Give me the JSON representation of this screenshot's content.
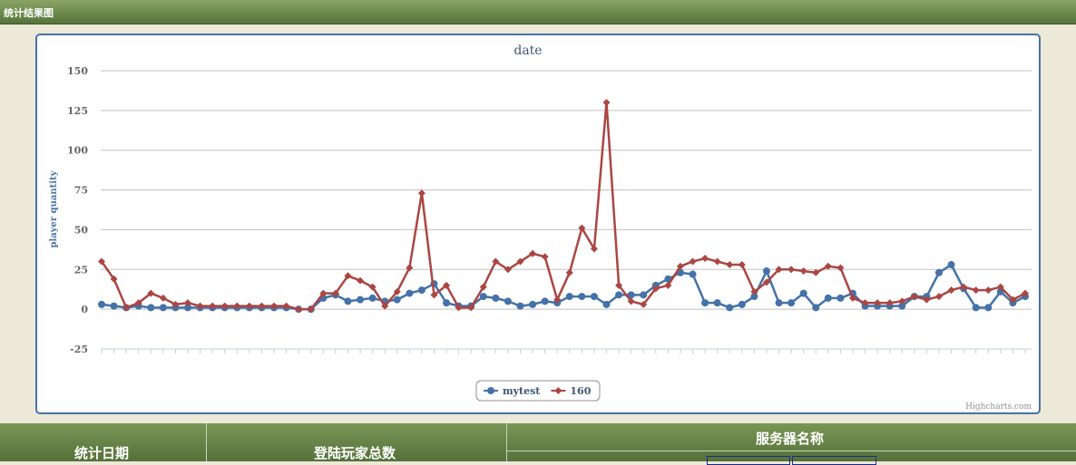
{
  "header": {
    "title": "统计结果图"
  },
  "chart_data": {
    "type": "line",
    "title": "date",
    "y_label": "player quantity",
    "credits": "Highcharts.com",
    "categories": [
      null,
      null,
      null,
      null,
      null,
      null,
      null,
      null,
      null,
      null,
      null,
      null,
      null,
      null,
      null,
      null,
      null,
      null,
      null,
      null,
      null,
      null,
      null,
      null,
      null,
      null,
      null,
      null,
      null,
      null,
      null,
      null,
      null,
      null,
      null,
      null,
      null,
      null,
      null,
      null,
      null,
      null,
      null,
      null,
      null,
      null,
      null,
      null,
      null,
      null,
      null,
      null,
      null,
      null,
      null,
      null,
      null,
      null,
      null,
      null,
      null,
      null,
      null,
      null,
      null,
      null,
      null,
      null,
      null,
      null,
      null,
      null,
      null,
      null,
      null,
      null
    ],
    "series": [
      {
        "name": "mytest",
        "color": "#4572a7",
        "marker": "circle",
        "values": [
          3,
          2,
          1,
          2,
          1,
          1,
          1,
          1,
          1,
          1,
          1,
          1,
          1,
          1,
          1,
          1,
          0,
          0,
          7,
          9,
          5,
          6,
          7,
          5,
          6,
          10,
          12,
          16,
          4,
          2,
          2,
          8,
          7,
          5,
          2,
          3,
          5,
          4,
          8,
          8,
          8,
          3,
          9,
          9,
          9,
          15,
          19,
          23,
          22,
          4,
          4,
          1,
          3,
          8,
          24,
          4,
          4,
          10,
          1,
          7,
          7,
          10,
          2,
          2,
          2,
          2,
          8,
          8,
          23,
          28,
          13,
          1,
          1,
          11,
          4,
          8
        ]
      },
      {
        "name": "160",
        "color": "#aa4643",
        "marker": "diamond",
        "values": [
          30,
          19,
          1,
          4,
          10,
          7,
          3,
          4,
          2,
          2,
          2,
          2,
          2,
          2,
          2,
          2,
          0,
          0,
          10,
          10,
          21,
          18,
          14,
          2,
          11,
          26,
          73,
          9,
          15,
          1,
          1,
          14,
          30,
          25,
          30,
          35,
          33,
          6,
          23,
          51,
          38,
          130,
          15,
          5,
          3,
          13,
          15,
          27,
          30,
          32,
          30,
          28,
          28,
          11,
          17,
          25,
          25,
          24,
          23,
          27,
          26,
          7,
          4,
          4,
          4,
          5,
          8,
          6,
          8,
          12,
          14,
          12,
          12,
          14,
          6,
          10
        ]
      }
    ],
    "ylim": [
      -25,
      150
    ],
    "yticks": [
      -25,
      0,
      25,
      50,
      75,
      100,
      125,
      150
    ],
    "grid": true,
    "legend": "bottom"
  },
  "table": {
    "headers": [
      "统计日期",
      "登陆玩家总数",
      "服务器名称"
    ]
  }
}
